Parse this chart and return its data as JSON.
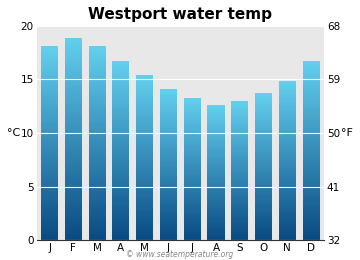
{
  "title": "Westport water temp",
  "months": [
    "J",
    "F",
    "M",
    "A",
    "M",
    "J",
    "J",
    "A",
    "S",
    "O",
    "N",
    "D"
  ],
  "values_c": [
    18.1,
    18.9,
    18.1,
    16.7,
    15.4,
    14.1,
    13.3,
    12.6,
    13.0,
    13.7,
    14.9,
    16.7
  ],
  "ylim_c": [
    0,
    20
  ],
  "yticks_c": [
    0,
    5,
    10,
    15,
    20
  ],
  "yticks_f": [
    32,
    41,
    50,
    59,
    68
  ],
  "ylabel_left": "°C",
  "ylabel_right": "°F",
  "bar_color_top": "#62cfee",
  "bar_color_bottom": "#094a82",
  "plot_bg_color": "#e8e8e8",
  "fig_bg_color": "#ffffff",
  "watermark": "© www.seatemperature.org",
  "title_fontsize": 11,
  "tick_fontsize": 7.5,
  "label_fontsize": 8,
  "bar_width": 0.72
}
